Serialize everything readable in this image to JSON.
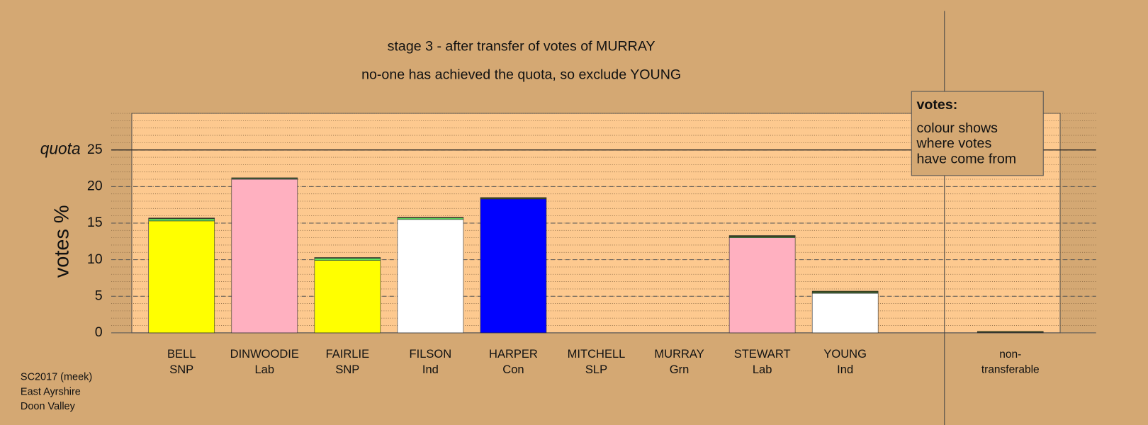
{
  "chart_data": {
    "type": "stacked_bar",
    "title": "stage 3 - after transfer of votes of MURRAY",
    "subtitle": "no-one has achieved the quota, so exclude YOUNG",
    "y_label": "votes %",
    "quota_label": "quota",
    "quota": 25,
    "categories": [
      [
        "BELL",
        "SNP"
      ],
      [
        "DINWOODIE",
        "Lab"
      ],
      [
        "FAIRLIE",
        "SNP"
      ],
      [
        "FILSON",
        "Ind"
      ],
      [
        "HARPER",
        "Con"
      ],
      [
        "MITCHELL",
        "SLP"
      ],
      [
        "MURRAY",
        "Grn"
      ],
      [
        "STEWART",
        "Lab"
      ],
      [
        "YOUNG",
        "Ind"
      ],
      [
        "non-",
        "transferable"
      ]
    ],
    "series": [
      {
        "colors": [
          "#ffff00",
          "#ffb0c0",
          "#ffff00",
          "#ffffff",
          "#0000ff",
          "#ff0000",
          "#00cc00",
          "#ffb0c0",
          "#ffffff",
          "#ffffff"
        ],
        "values": [
          15.3,
          21.0,
          9.9,
          15.5,
          18.3,
          0,
          0,
          13.0,
          5.4,
          0
        ]
      },
      {
        "color": "#5ee35e",
        "values": [
          0.3,
          0.1,
          0.3,
          0.2,
          0,
          0,
          0,
          0.1,
          0.1,
          0.05
        ]
      },
      {
        "color": "#3a4a1a",
        "values": [
          0.1,
          0.1,
          0.1,
          0.1,
          0.2,
          0,
          0,
          0.2,
          0.2,
          0.15
        ]
      }
    ],
    "ylim": [
      0,
      30
    ],
    "yticks": [
      0,
      5,
      10,
      15,
      20,
      25
    ],
    "grid": true,
    "minor_grid": true,
    "annotation": {
      "title": "votes:",
      "lines": [
        "colour shows",
        "where votes",
        "have come from"
      ]
    },
    "footer": [
      "SC2017 (meek)",
      "East Ayrshire",
      "Doon Valley"
    ]
  }
}
